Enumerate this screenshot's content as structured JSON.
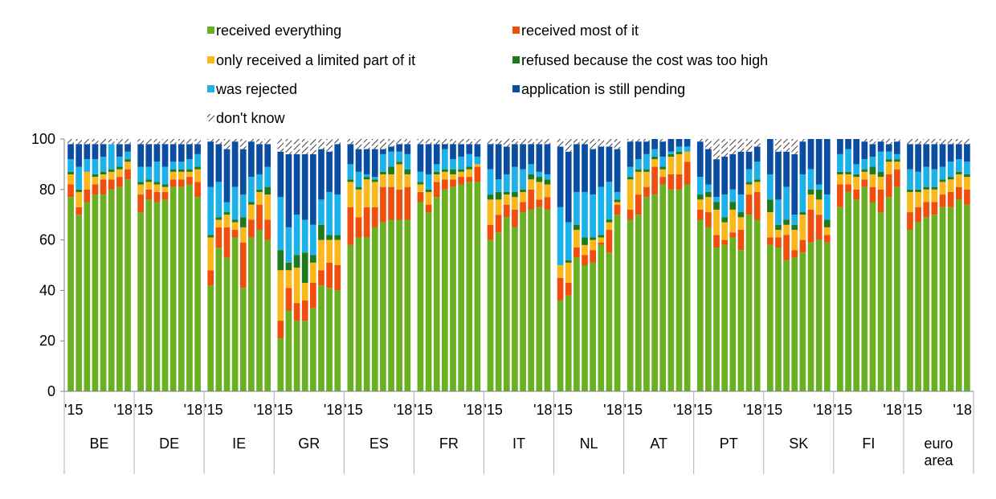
{
  "chart_data": {
    "type": "bar",
    "stacked": true,
    "ylim": [
      0,
      100
    ],
    "yticks": [
      0,
      20,
      40,
      60,
      80,
      100
    ],
    "grid": false,
    "legend_position": "top",
    "legend": [
      {
        "name": "received everything",
        "color": "#6ab023"
      },
      {
        "name": "received most of it",
        "color": "#f04e0f"
      },
      {
        "name": "only received a limited part of it",
        "color": "#fbb81c"
      },
      {
        "name": "refused because the cost was too high",
        "color": "#1e7a1a"
      },
      {
        "name": "was rejected",
        "color": "#1cb1e8"
      },
      {
        "name": "application is still pending",
        "color": "#0b4ea1"
      },
      {
        "name": "don't know",
        "color": "hatched"
      }
    ],
    "period_labels": {
      "first": "'15",
      "last": "'18"
    },
    "groups": [
      {
        "label": "BE",
        "bars": [
          [
            77,
            5,
            4,
            1,
            5,
            6,
            2
          ],
          [
            70,
            3,
            6,
            1,
            9,
            9,
            2
          ],
          [
            75,
            5,
            7,
            0,
            5,
            6,
            2
          ],
          [
            78,
            4,
            3,
            1,
            6,
            6,
            2
          ],
          [
            78,
            6,
            2,
            1,
            6,
            5,
            2
          ],
          [
            80,
            4,
            3,
            1,
            10,
            0,
            2
          ],
          [
            81,
            4,
            3,
            1,
            4,
            5,
            2
          ],
          [
            84,
            4,
            3,
            1,
            3,
            3,
            2
          ]
        ]
      },
      {
        "label": "DE",
        "bars": [
          [
            71,
            7,
            4,
            1,
            6,
            9,
            2
          ],
          [
            76,
            4,
            3,
            1,
            5,
            9,
            2
          ],
          [
            75,
            4,
            3,
            1,
            8,
            7,
            2
          ],
          [
            76,
            3,
            2,
            1,
            7,
            9,
            2
          ],
          [
            81,
            3,
            3,
            1,
            3,
            7,
            2
          ],
          [
            81,
            3,
            3,
            1,
            3,
            7,
            2
          ],
          [
            82,
            3,
            2,
            1,
            4,
            6,
            2
          ],
          [
            77,
            6,
            5,
            1,
            5,
            4,
            2
          ]
        ]
      },
      {
        "label": "IE",
        "bars": [
          [
            42,
            6,
            13,
            1,
            19,
            18,
            1
          ],
          [
            57,
            8,
            3,
            1,
            14,
            15,
            2
          ],
          [
            53,
            12,
            5,
            1,
            4,
            21,
            4
          ],
          [
            61,
            3,
            3,
            1,
            13,
            18,
            1
          ],
          [
            41,
            18,
            6,
            4,
            9,
            18,
            4
          ],
          [
            61,
            7,
            6,
            1,
            10,
            14,
            1
          ],
          [
            64,
            10,
            5,
            1,
            6,
            12,
            2
          ],
          [
            60,
            8,
            10,
            3,
            8,
            9,
            2
          ]
        ]
      },
      {
        "label": "GR",
        "bars": [
          [
            21,
            7,
            20,
            8,
            21,
            18,
            5
          ],
          [
            32,
            9,
            7,
            3,
            14,
            29,
            6
          ],
          [
            28,
            7,
            14,
            5,
            16,
            24,
            6
          ],
          [
            28,
            8,
            7,
            12,
            13,
            26,
            6
          ],
          [
            33,
            10,
            8,
            3,
            12,
            28,
            6
          ],
          [
            42,
            6,
            12,
            6,
            10,
            20,
            4
          ],
          [
            41,
            10,
            9,
            2,
            17,
            16,
            5
          ],
          [
            40,
            10,
            10,
            2,
            16,
            20,
            2
          ]
        ]
      },
      {
        "label": "ES",
        "bars": [
          [
            58,
            15,
            10,
            1,
            6,
            8,
            2
          ],
          [
            61,
            8,
            11,
            1,
            6,
            9,
            4
          ],
          [
            61,
            12,
            11,
            1,
            1,
            10,
            4
          ],
          [
            65,
            8,
            10,
            1,
            1,
            11,
            4
          ],
          [
            67,
            14,
            5,
            1,
            7,
            2,
            4
          ],
          [
            68,
            13,
            5,
            3,
            6,
            2,
            3
          ],
          [
            68,
            12,
            10,
            1,
            4,
            3,
            2
          ],
          [
            68,
            13,
            5,
            2,
            6,
            4,
            2
          ]
        ]
      },
      {
        "label": "FR",
        "bars": [
          [
            75,
            4,
            3,
            1,
            4,
            11,
            2
          ],
          [
            71,
            3,
            5,
            1,
            6,
            12,
            2
          ],
          [
            77,
            6,
            3,
            1,
            3,
            8,
            2
          ],
          [
            80,
            4,
            3,
            1,
            8,
            2,
            2
          ],
          [
            81,
            3,
            2,
            2,
            4,
            6,
            2
          ],
          [
            82,
            3,
            2,
            1,
            5,
            5,
            2
          ],
          [
            83,
            2,
            3,
            1,
            5,
            4,
            2
          ],
          [
            83,
            6,
            1,
            0,
            3,
            5,
            2
          ]
        ]
      },
      {
        "label": "IT",
        "bars": [
          [
            60,
            6,
            10,
            2,
            10,
            10,
            2
          ],
          [
            63,
            7,
            6,
            3,
            5,
            14,
            2
          ],
          [
            69,
            5,
            4,
            1,
            7,
            11,
            3
          ],
          [
            65,
            7,
            5,
            2,
            10,
            9,
            2
          ],
          [
            71,
            4,
            4,
            1,
            8,
            10,
            2
          ],
          [
            72,
            8,
            4,
            2,
            4,
            8,
            2
          ],
          [
            73,
            3,
            7,
            2,
            2,
            11,
            2
          ],
          [
            72,
            5,
            5,
            2,
            2,
            12,
            2
          ]
        ]
      },
      {
        "label": "NL",
        "bars": [
          [
            36,
            9,
            5,
            0,
            23,
            24,
            3
          ],
          [
            38,
            5,
            8,
            1,
            15,
            28,
            5
          ],
          [
            53,
            4,
            7,
            2,
            13,
            19,
            2
          ],
          [
            50,
            4,
            4,
            3,
            18,
            19,
            2
          ],
          [
            51,
            5,
            4,
            1,
            17,
            18,
            4
          ],
          [
            58,
            1,
            2,
            1,
            19,
            16,
            3
          ],
          [
            55,
            9,
            3,
            1,
            15,
            14,
            3
          ],
          [
            70,
            4,
            1,
            1,
            3,
            17,
            4
          ]
        ]
      },
      {
        "label": "AT",
        "bars": [
          [
            68,
            4,
            12,
            1,
            4,
            10,
            1
          ],
          [
            70,
            8,
            9,
            1,
            4,
            7,
            1
          ],
          [
            77,
            4,
            6,
            1,
            6,
            5,
            1
          ],
          [
            78,
            11,
            3,
            1,
            3,
            4,
            0
          ],
          [
            82,
            3,
            3,
            1,
            4,
            6,
            1
          ],
          [
            80,
            6,
            7,
            1,
            1,
            5,
            0
          ],
          [
            80,
            6,
            8,
            1,
            2,
            3,
            0
          ],
          [
            82,
            9,
            4,
            0,
            2,
            3,
            0
          ]
        ]
      },
      {
        "label": "PT",
        "bars": [
          [
            68,
            4,
            4,
            2,
            7,
            14,
            1
          ],
          [
            65,
            6,
            6,
            2,
            3,
            14,
            4
          ],
          [
            57,
            5,
            10,
            3,
            2,
            15,
            8
          ],
          [
            58,
            2,
            7,
            2,
            9,
            15,
            7
          ],
          [
            61,
            2,
            9,
            3,
            5,
            14,
            6
          ],
          [
            56,
            8,
            5,
            2,
            7,
            17,
            5
          ],
          [
            70,
            8,
            4,
            1,
            5,
            7,
            5
          ],
          [
            68,
            11,
            4,
            1,
            7,
            6,
            3
          ]
        ]
      },
      {
        "label": "SK",
        "bars": [
          [
            58,
            3,
            10,
            5,
            10,
            20,
            4
          ],
          [
            57,
            4,
            3,
            2,
            10,
            19,
            5
          ],
          [
            52,
            10,
            4,
            2,
            13,
            14,
            5
          ],
          [
            53,
            3,
            8,
            2,
            4,
            24,
            6
          ],
          [
            55,
            5,
            10,
            1,
            15,
            13,
            1
          ],
          [
            59,
            13,
            6,
            2,
            8,
            12,
            0
          ],
          [
            60,
            10,
            6,
            4,
            2,
            18,
            0
          ],
          [
            59,
            3,
            3,
            3,
            10,
            22,
            0
          ]
        ]
      },
      {
        "label": "FI",
        "bars": [
          [
            73,
            9,
            4,
            1,
            7,
            6,
            0
          ],
          [
            79,
            3,
            4,
            1,
            9,
            4,
            0
          ],
          [
            76,
            4,
            5,
            1,
            4,
            10,
            0
          ],
          [
            81,
            3,
            3,
            1,
            4,
            7,
            1
          ],
          [
            75,
            6,
            5,
            3,
            4,
            5,
            2
          ],
          [
            71,
            9,
            5,
            2,
            8,
            4,
            1
          ],
          [
            77,
            9,
            5,
            1,
            3,
            3,
            2
          ],
          [
            81,
            7,
            3,
            1,
            2,
            5,
            1
          ]
        ]
      },
      {
        "label": "euro area",
        "bars": [
          [
            64,
            7,
            8,
            1,
            8,
            10,
            2
          ],
          [
            67,
            6,
            6,
            1,
            7,
            11,
            2
          ],
          [
            69,
            6,
            5,
            1,
            8,
            9,
            2
          ],
          [
            70,
            5,
            5,
            1,
            7,
            10,
            2
          ],
          [
            73,
            5,
            5,
            1,
            5,
            9,
            2
          ],
          [
            73,
            6,
            5,
            1,
            6,
            7,
            2
          ],
          [
            76,
            5,
            5,
            1,
            5,
            6,
            2
          ],
          [
            74,
            6,
            5,
            1,
            5,
            7,
            2
          ]
        ]
      }
    ]
  }
}
